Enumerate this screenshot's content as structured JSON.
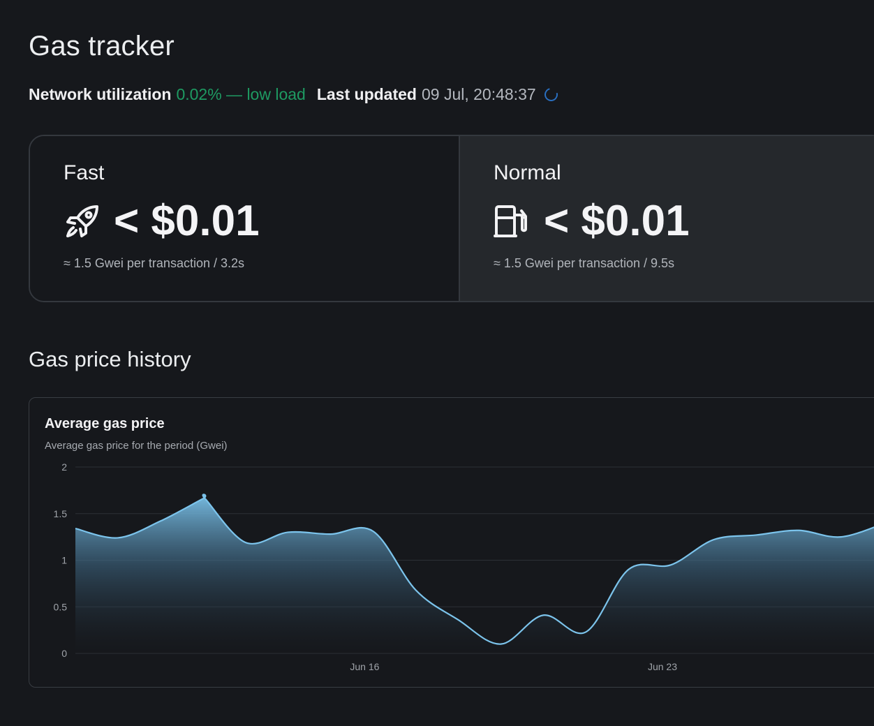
{
  "page": {
    "title": "Gas tracker"
  },
  "status": {
    "network_label": "Network utilization",
    "network_value": "0.02% — low load",
    "updated_label": "Last updated",
    "updated_value": "09 Jul, 20:48:37"
  },
  "gas_cards": [
    {
      "title": "Fast",
      "icon": "rocket-icon",
      "price": "< $0.01",
      "sub": "≈ 1.5 Gwei per transaction / 3.2s"
    },
    {
      "title": "Normal",
      "icon": "gas-pump-icon",
      "price": "< $0.01",
      "sub": "≈ 1.5 Gwei per transaction / 9.5s"
    }
  ],
  "history": {
    "section_title": "Gas price history"
  },
  "chart_data": {
    "type": "area",
    "title": "Average gas price",
    "subtitle": "Average gas price for the period (Gwei)",
    "xlabel": "",
    "ylabel": "",
    "ylim": [
      0,
      2
    ],
    "yticks": [
      "0",
      "0.5",
      "1",
      "1.5",
      "2"
    ],
    "xticks": [
      {
        "label": "Jun 16",
        "x": 6.8
      },
      {
        "label": "Jun 23",
        "x": 13.8
      }
    ],
    "xlim": [
      0,
      19.1
    ],
    "grid": true,
    "legend": "none",
    "line_color": "#7cc4ec",
    "series": [
      {
        "name": "",
        "x": [
          0,
          1,
          2,
          3,
          3.05,
          4,
          5,
          6,
          7,
          8,
          9,
          10,
          11,
          12,
          13,
          14,
          15,
          16,
          17,
          18,
          19.1
        ],
        "values": [
          1.34,
          1.24,
          1.42,
          1.66,
          1.66,
          1.19,
          1.3,
          1.28,
          1.31,
          0.68,
          0.36,
          0.1,
          0.41,
          0.23,
          0.9,
          0.95,
          1.22,
          1.27,
          1.32,
          1.25,
          1.41
        ]
      }
    ]
  }
}
